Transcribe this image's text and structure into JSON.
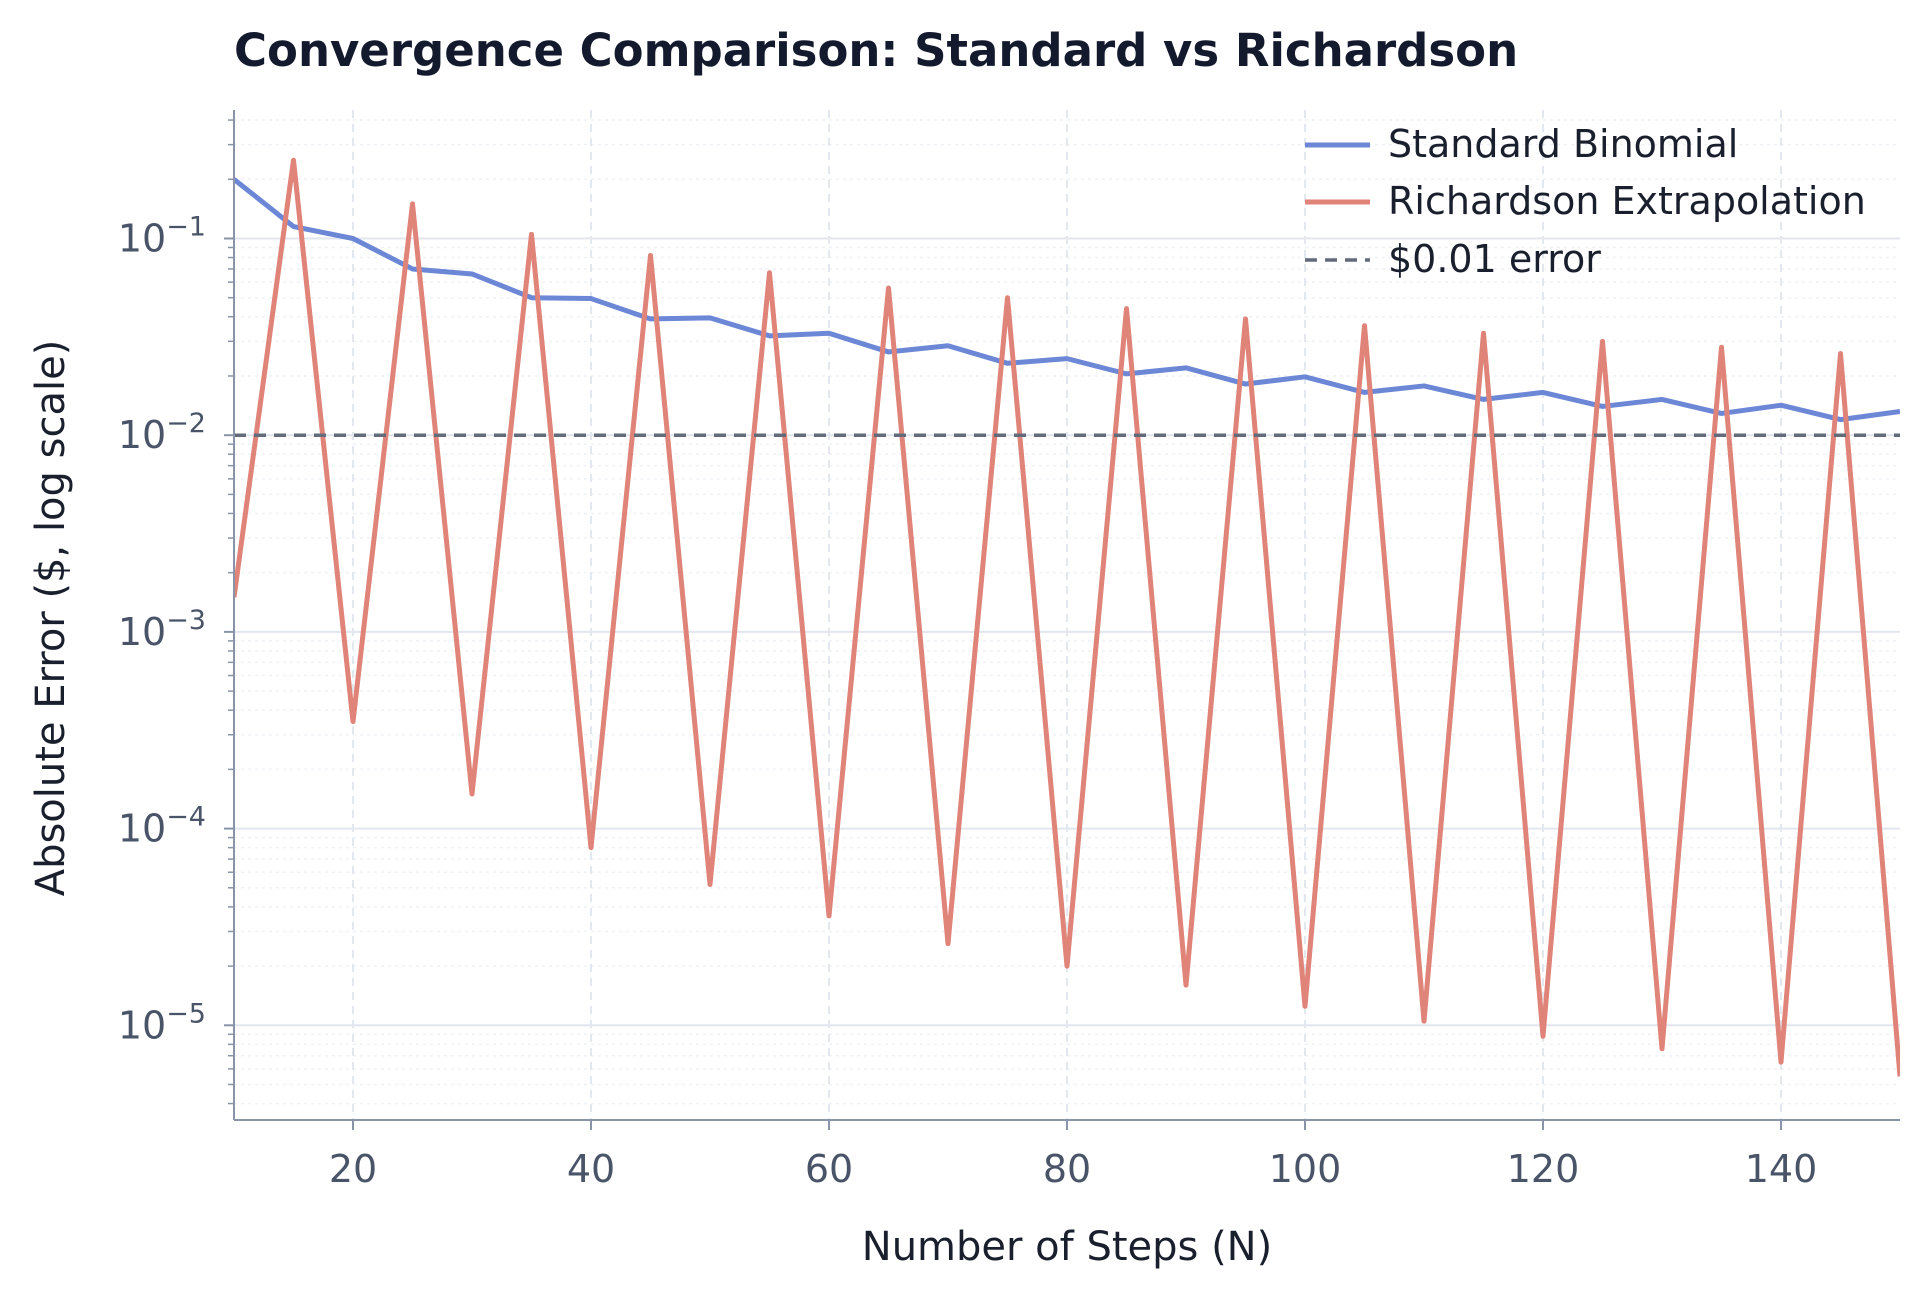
{
  "chart_data": {
    "type": "line",
    "title": "Convergence Comparison: Standard vs Richardson",
    "xlabel": "Number of Steps (N)",
    "ylabel": "Absolute Error ($, log scale)",
    "yscale": "log",
    "xlim": [
      10,
      150
    ],
    "ylim": [
      3.3e-06,
      0.45
    ],
    "x_ticks": [
      20,
      40,
      60,
      80,
      100,
      120,
      140
    ],
    "x_tick_labels": [
      "20",
      "40",
      "60",
      "80",
      "100",
      "120",
      "140"
    ],
    "y_ticks": [
      {
        "value": 0.1,
        "base": "10",
        "exp": "−1"
      },
      {
        "value": 0.01,
        "base": "10",
        "exp": "−2"
      },
      {
        "value": 0.001,
        "base": "10",
        "exp": "−3"
      },
      {
        "value": 0.0001,
        "base": "10",
        "exp": "−4"
      },
      {
        "value": 1e-05,
        "base": "10",
        "exp": "−5"
      }
    ],
    "grid": true,
    "legend_position": "top-right",
    "x": [
      10,
      15,
      20,
      25,
      30,
      35,
      40,
      45,
      50,
      55,
      60,
      65,
      70,
      75,
      80,
      85,
      90,
      95,
      100,
      105,
      110,
      115,
      120,
      125,
      130,
      135,
      140,
      145,
      150
    ],
    "series": [
      {
        "name": "Standard Binomial",
        "color": "#6b87d6",
        "style": "solid",
        "values": [
          0.2,
          0.115,
          0.1,
          0.07,
          0.066,
          0.05,
          0.0495,
          0.039,
          0.0395,
          0.032,
          0.033,
          0.0265,
          0.0285,
          0.0232,
          0.0245,
          0.0205,
          0.022,
          0.0182,
          0.0198,
          0.0165,
          0.0178,
          0.0152,
          0.0165,
          0.014,
          0.0152,
          0.0129,
          0.0142,
          0.012,
          0.0132
        ]
      },
      {
        "name": "Richardson Extrapolation",
        "color": "#e08378",
        "style": "solid",
        "values": [
          0.0015,
          0.25,
          0.00035,
          0.15,
          0.00015,
          0.105,
          8e-05,
          0.082,
          5.2e-05,
          0.067,
          3.6e-05,
          0.056,
          2.6e-05,
          0.05,
          2e-05,
          0.044,
          1.6e-05,
          0.039,
          1.25e-05,
          0.036,
          1.05e-05,
          0.033,
          8.8e-06,
          0.03,
          7.6e-06,
          0.028,
          6.5e-06,
          0.026,
          5.5e-06
        ]
      },
      {
        "name": "$0.01 error",
        "color": "#636b7a",
        "style": "dashed",
        "values": [
          0.01,
          0.01,
          0.01,
          0.01,
          0.01,
          0.01,
          0.01,
          0.01,
          0.01,
          0.01,
          0.01,
          0.01,
          0.01,
          0.01,
          0.01,
          0.01,
          0.01,
          0.01,
          0.01,
          0.01,
          0.01,
          0.01,
          0.01,
          0.01,
          0.01,
          0.01,
          0.01,
          0.01,
          0.01
        ]
      }
    ]
  }
}
